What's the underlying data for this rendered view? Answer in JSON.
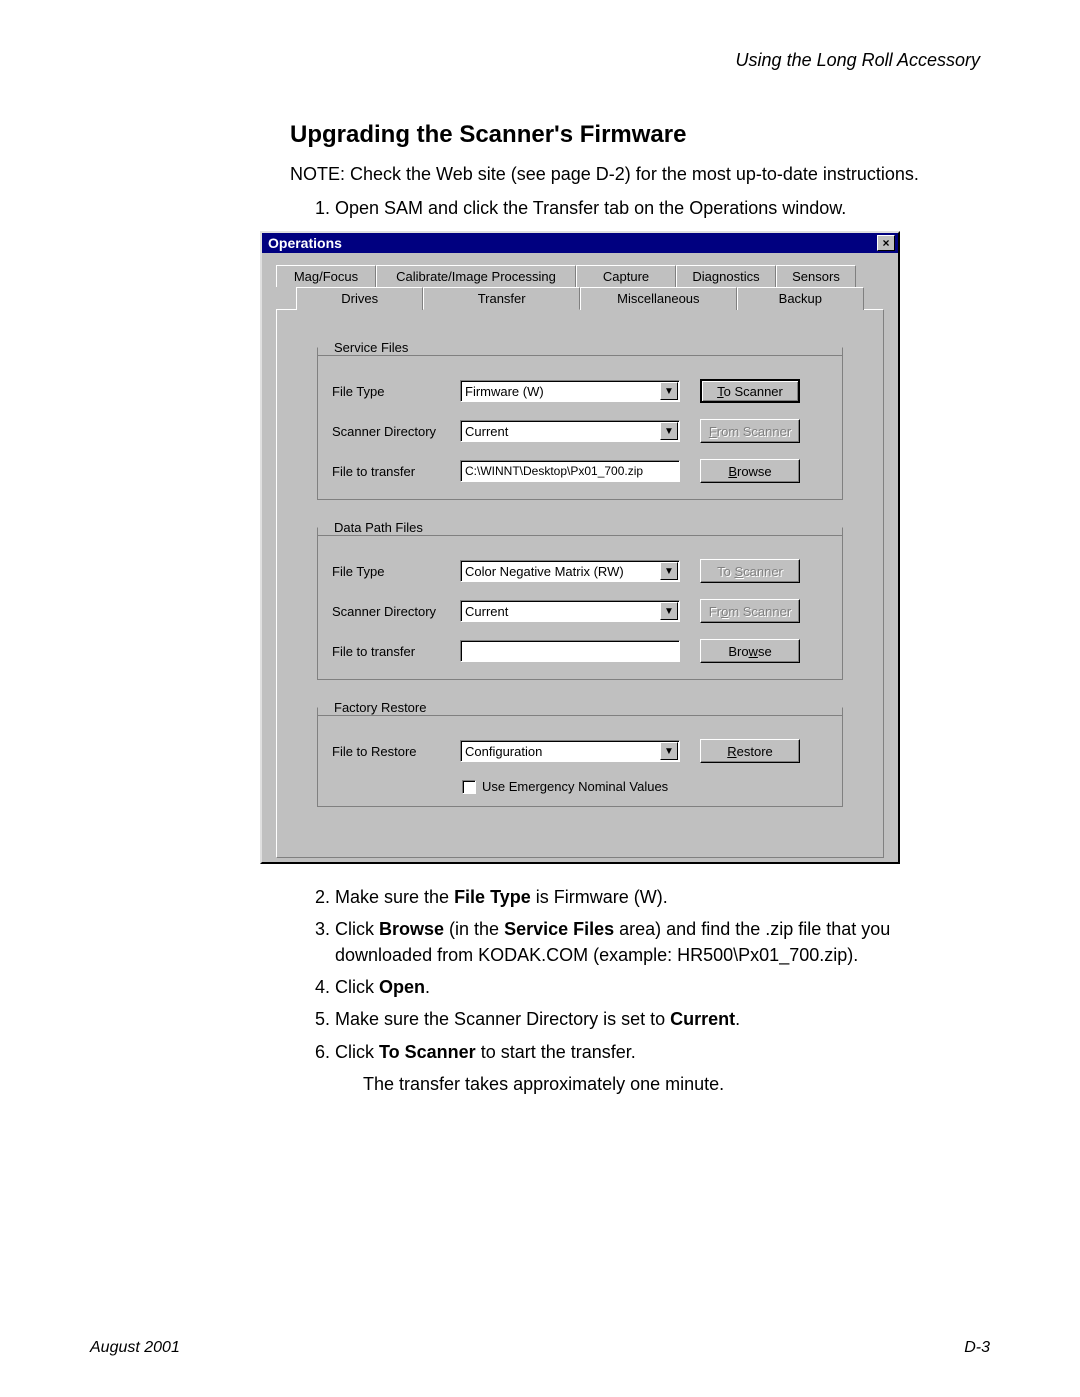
{
  "page": {
    "header": "Using the Long Roll Accessory",
    "title": "Upgrading the Scanner's Firmware",
    "note": "NOTE:  Check the Web site (see page D-2) for the most up-to-date instructions.",
    "step1": "Open SAM and click the Transfer tab on the Operations window.",
    "step2_a": "Make sure the ",
    "step2_b": "File Type",
    "step2_c": " is Firmware (W).",
    "step3_a": "Click ",
    "step3_b": "Browse",
    "step3_c": " (in the ",
    "step3_d": "Service Files",
    "step3_e": " area) and find the .zip file that you downloaded from KODAK.COM (example: HR500\\Px01_700.zip).",
    "step4_a": "Click ",
    "step4_b": "Open",
    "step4_c": ".",
    "step5_a": "Make sure the Scanner Directory is set to ",
    "step5_b": "Current",
    "step5_c": ".",
    "step6_a": "Click ",
    "step6_b": "To Scanner",
    "step6_c": " to start the transfer.",
    "step6_sub": "The transfer takes approximately one minute.",
    "footer_left": "August 2001",
    "footer_right": "D-3"
  },
  "dialog": {
    "title": "Operations",
    "tabs_back": [
      "Mag/Focus",
      "Calibrate/Image Processing",
      "Capture",
      "Diagnostics",
      "Sensors"
    ],
    "tabs_back_widths": [
      100,
      200,
      100,
      100,
      80
    ],
    "tabs_front": [
      "Drives",
      "Transfer",
      "Miscellaneous",
      "Backup"
    ],
    "tabs_front_widths": [
      130,
      160,
      160,
      130
    ],
    "active_front_tab": 1,
    "service": {
      "legend": "Service Files",
      "file_type_label": "File Type",
      "file_type_value": "Firmware (W)",
      "to_scanner": "To Scanner",
      "to_scanner_u": "T",
      "dir_label": "Scanner Directory",
      "dir_value": "Current",
      "from_scanner": "From Scanner",
      "from_scanner_u": "F",
      "transfer_label": "File to transfer",
      "transfer_value": "C:\\WINNT\\Desktop\\Px01_700.zip",
      "browse": "Browse",
      "browse_u": "B"
    },
    "datapath": {
      "legend": "Data Path Files",
      "file_type_label": "File Type",
      "file_type_value": "Color Negative Matrix (RW)",
      "to_scanner": "To Scanner",
      "to_scanner_u": "S",
      "dir_label": "Scanner Directory",
      "dir_value": "Current",
      "from_scanner": "From Scanner",
      "from_scanner_u": "o",
      "transfer_label": "File to transfer",
      "transfer_value": "",
      "browse": "Browse",
      "browse_u": "w"
    },
    "restore": {
      "legend": "Factory Restore",
      "file_label": "File to Restore",
      "file_value": "Configuration",
      "restore": "Restore",
      "restore_u": "R",
      "chk_label": "Use Emergency Nominal Values"
    }
  }
}
